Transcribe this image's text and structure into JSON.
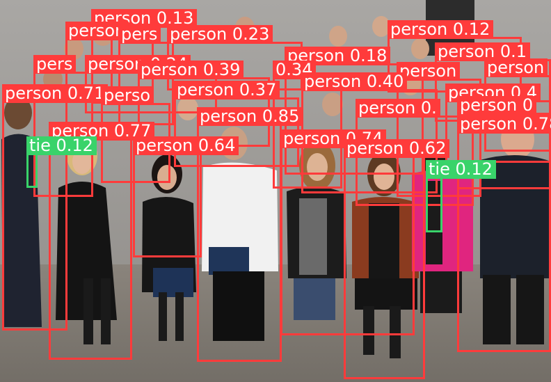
{
  "image": {
    "description_colors": {
      "wall": "#b8b6b2",
      "floor": "#8c877f",
      "person_box": "#ff3b3b",
      "tie_box": "#39d36a"
    }
  },
  "detections": [
    {
      "cls": "person",
      "text": "person 0.13"
    },
    {
      "cls": "person",
      "text": "person"
    },
    {
      "cls": "person",
      "text": "person 0.23"
    },
    {
      "cls": "person",
      "text": "pers"
    },
    {
      "cls": "person",
      "text": "person 0.12"
    },
    {
      "cls": "person",
      "text": "person 0.1"
    },
    {
      "cls": "person",
      "text": "pers"
    },
    {
      "cls": "person",
      "text": "person 0.24"
    },
    {
      "cls": "person",
      "text": "person 0.18"
    },
    {
      "cls": "person",
      "text": "person"
    },
    {
      "cls": "person",
      "text": "person 0.39"
    },
    {
      "cls": "person",
      "text": "0.34"
    },
    {
      "cls": "person",
      "text": "person"
    },
    {
      "cls": "person",
      "text": "person 0.40"
    },
    {
      "cls": "person",
      "text": "person 0.71"
    },
    {
      "cls": "person",
      "text": "perso"
    },
    {
      "cls": "person",
      "text": "person 0.37"
    },
    {
      "cls": "person",
      "text": "person 0.4"
    },
    {
      "cls": "person",
      "text": "person 0."
    },
    {
      "cls": "person",
      "text": "person 0"
    },
    {
      "cls": "person",
      "text": "person 0.85"
    },
    {
      "cls": "person",
      "text": "person 0.78"
    },
    {
      "cls": "person",
      "text": "person 0.77"
    },
    {
      "cls": "person",
      "text": "person 0.74"
    },
    {
      "cls": "person",
      "text": "person 0.64"
    },
    {
      "cls": "person",
      "text": "person 0.62"
    },
    {
      "cls": "tie",
      "text": "tie 0.12"
    },
    {
      "cls": "tie",
      "text": "tie 0.12"
    }
  ]
}
